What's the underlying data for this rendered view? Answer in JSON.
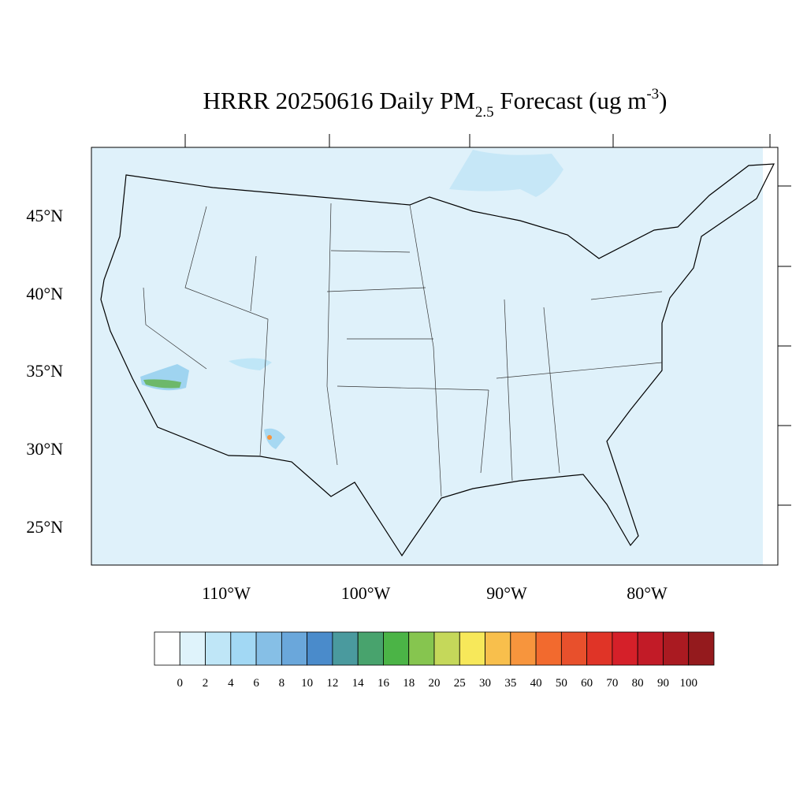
{
  "header": {
    "title": {
      "main": "HRRR 20250616 Daily PM",
      "subscript": "2.5",
      "middle": " Forecast (ug m",
      "superscript": "-3",
      "end": ")"
    }
  },
  "map": {
    "lat_labels": [
      "45°N",
      "40°N",
      "35°N",
      "30°N",
      "25°N"
    ],
    "lon_labels": [
      "110°W",
      "100°W",
      "90°W",
      "80°W"
    ]
  },
  "colorbar": {
    "levels": [
      0,
      2,
      4,
      6,
      8,
      10,
      12,
      14,
      16,
      18,
      20,
      25,
      30,
      35,
      40,
      50,
      60,
      70,
      80,
      90,
      100
    ],
    "colors": [
      "#ffffff",
      "#dff3fb",
      "#bfe6f7",
      "#a2d8f4",
      "#86bfe6",
      "#6aa7db",
      "#4a8bcb",
      "#4a9a9e",
      "#48a36d",
      "#4bb446",
      "#86c54f",
      "#c5d85a",
      "#f7e85a",
      "#f8bf4c",
      "#f7953d",
      "#f26a2e",
      "#e8502c",
      "#e03427",
      "#d52029",
      "#c21b27",
      "#aa1a21",
      "#941a1d"
    ]
  }
}
